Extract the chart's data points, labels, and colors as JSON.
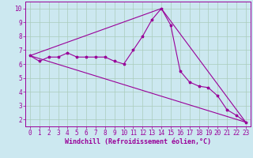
{
  "xlabel": "Windchill (Refroidissement éolien,°C)",
  "bg_color": "#cce8f0",
  "line_color": "#990099",
  "grid_color": "#aaccbb",
  "xlim": [
    -0.5,
    23.5
  ],
  "ylim": [
    1.5,
    10.5
  ],
  "yticks": [
    2,
    3,
    4,
    5,
    6,
    7,
    8,
    9,
    10
  ],
  "xticks": [
    0,
    1,
    2,
    3,
    4,
    5,
    6,
    7,
    8,
    9,
    10,
    11,
    12,
    13,
    14,
    15,
    16,
    17,
    18,
    19,
    20,
    21,
    22,
    23
  ],
  "line1_x": [
    0,
    1,
    2,
    3,
    4,
    5,
    6,
    7,
    8,
    9,
    10,
    11,
    12,
    13,
    14,
    15,
    16,
    17,
    18,
    19,
    20,
    21,
    22,
    23
  ],
  "line1_y": [
    6.6,
    6.2,
    6.5,
    6.5,
    6.8,
    6.5,
    6.5,
    6.5,
    6.5,
    6.2,
    6.0,
    7.0,
    8.0,
    9.2,
    10.0,
    8.8,
    5.5,
    4.7,
    4.4,
    4.3,
    3.7,
    2.7,
    2.3,
    1.8
  ],
  "line2_x": [
    0,
    23
  ],
  "line2_y": [
    6.6,
    1.8
  ],
  "line3_x": [
    0,
    14,
    23
  ],
  "line3_y": [
    6.6,
    10.0,
    1.8
  ],
  "xlabel_fontsize": 6.0,
  "tick_fontsize": 5.5,
  "linewidth": 0.8,
  "markersize": 2.5
}
